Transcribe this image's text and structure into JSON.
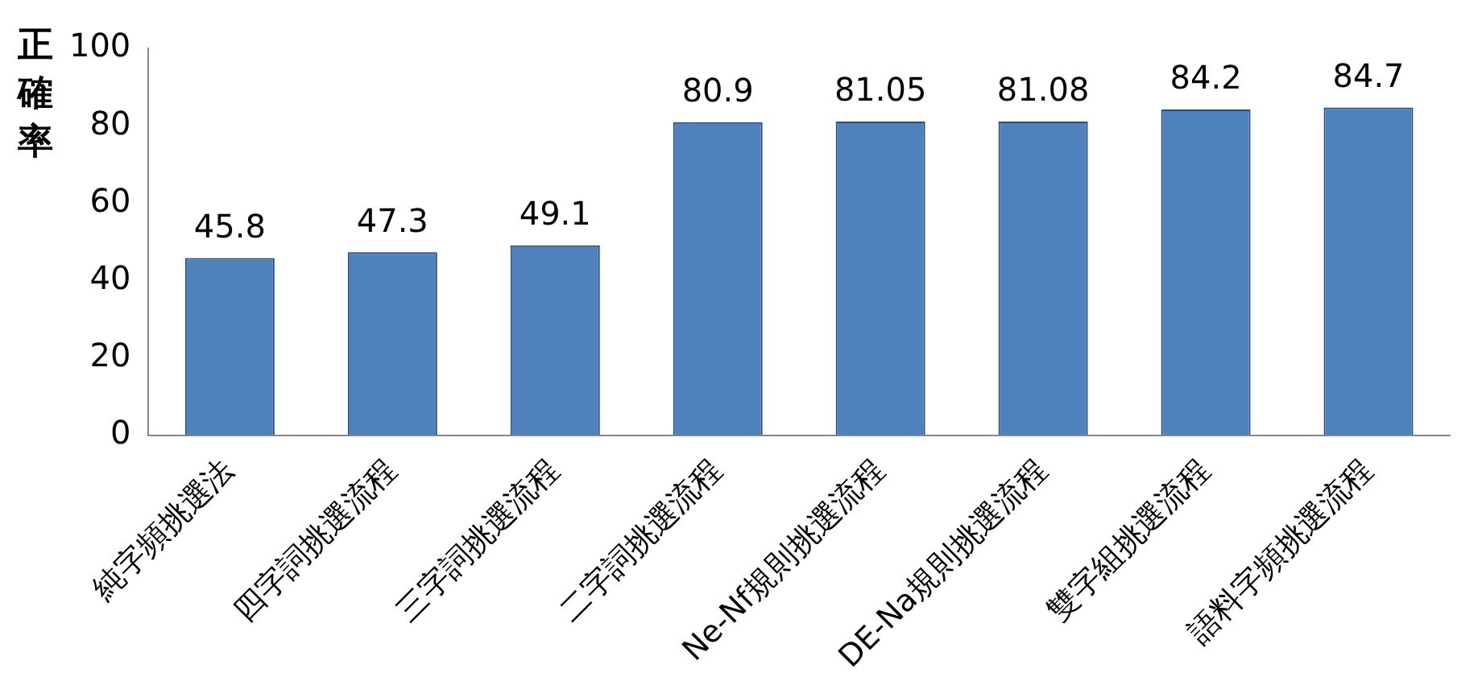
{
  "chart_data": {
    "type": "bar",
    "ylabel": "正確率",
    "categories": [
      "純字頻挑選法",
      "四字詞挑選流程",
      "三字詞挑選流程",
      "二字詞挑選流程",
      "Ne-Nf規則挑選流程",
      "DE-Na規則挑選流程",
      "雙字組挑選流程",
      "語料字頻挑選流程"
    ],
    "values": [
      45.8,
      47.3,
      49.1,
      80.9,
      81.05,
      81.08,
      84.2,
      84.7
    ],
    "color": "#4f81bd",
    "ylim": [
      0,
      100
    ],
    "yticks": [
      0,
      20,
      40,
      60,
      80,
      100
    ],
    "grid": false,
    "legend": false,
    "data_labels": true
  }
}
